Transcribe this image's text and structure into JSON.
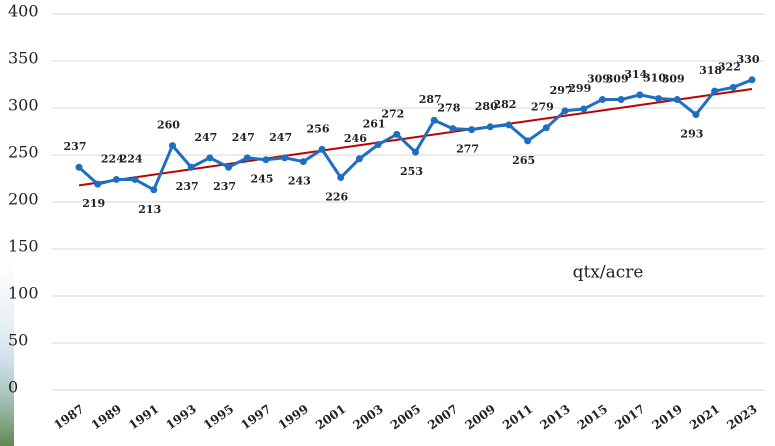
{
  "chart_data": {
    "type": "line",
    "x": [
      1987,
      1988,
      1989,
      1990,
      1991,
      1992,
      1993,
      1994,
      1995,
      1996,
      1997,
      1998,
      1999,
      2000,
      2001,
      2002,
      2003,
      2004,
      2005,
      2006,
      2007,
      2008,
      2009,
      2010,
      2011,
      2012,
      2013,
      2014,
      2015,
      2016,
      2017,
      2018,
      2019,
      2020,
      2021,
      2022,
      2023
    ],
    "series": [
      {
        "color": "#1f6fc0",
        "values": [
          237,
          219,
          224,
          224,
          213,
          260,
          237,
          247,
          237,
          247,
          245,
          247,
          243,
          256,
          226,
          246,
          261,
          272,
          253,
          287,
          278,
          277,
          280,
          282,
          265,
          279,
          297,
          299,
          309,
          309,
          314,
          310,
          309,
          293,
          318,
          322,
          330
        ]
      }
    ],
    "xlim": [
      1987,
      2023
    ],
    "xticks": [
      1987,
      1989,
      1991,
      1993,
      1995,
      1997,
      1999,
      2001,
      2003,
      2005,
      2007,
      2009,
      2011,
      2013,
      2015,
      2017,
      2019,
      2021,
      2023
    ],
    "ylim": [
      0,
      400
    ],
    "yticks": [
      0,
      50,
      100,
      150,
      200,
      250,
      300,
      350,
      400
    ],
    "grid": true,
    "trendline": true,
    "trendline_color": "#c00000",
    "annotation": "qtx/acre"
  }
}
